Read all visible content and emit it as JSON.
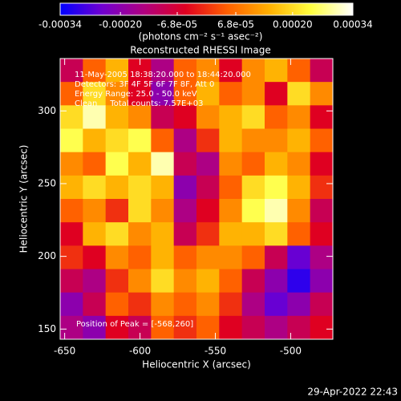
{
  "chart_data": {
    "type": "heatmap",
    "title": "Reconstructed RHESSI Image",
    "xlabel": "Heliocentric X (arcsec)",
    "ylabel": "Heliocentric Y (arcsec)",
    "colorbar_label": "(photons cm⁻² s⁻¹ asec⁻²)",
    "clim": [
      -0.00034,
      0.00034
    ],
    "cticks": [
      -0.00034,
      {
        "value": -0.0002,
        "label": "-0.00020"
      },
      {
        "value": -6.8e-05,
        "label": "-6.8e-05"
      },
      {
        "value": 6.8e-05,
        "label": "6.8e-05"
      },
      {
        "value": 0.0002,
        "label": "0.00020"
      },
      0.00034
    ],
    "colormap": [
      "#0000ff",
      "#7000d0",
      "#b00080",
      "#e00020",
      "#ff6000",
      "#ffb000",
      "#ffff40",
      "#ffffff"
    ],
    "xlim": [
      -653,
      -472
    ],
    "ylim": [
      143,
      336
    ],
    "xticks": [
      -650,
      -600,
      -550,
      -500
    ],
    "yticks": [
      150,
      200,
      250,
      300
    ],
    "annotations": [
      "11-May-2005 18:38:20.000 to 18:44:20.000",
      "Detectors: 3F 4F 5F 6F 7F 8F, Att 0",
      "Energy Range: 25.0 - 50.0 keV",
      "Clean     Total counts: 7.57E+03"
    ],
    "peak_label": "Position of Peak = [-568,260]",
    "footer": "29-Apr-2022 22:43",
    "z": [
      [
        -0.0001,
        5e-05,
        0.00015,
        -5e-05,
        -0.00015,
        5e-05,
        0.0001,
        -5e-05,
        0.0001,
        0.00015,
        5e-05,
        -0.0001
      ],
      [
        5e-05,
        0.0002,
        0.0001,
        -5e-05,
        -0.0002,
        5e-05,
        0.00015,
        5e-05,
        0.0001,
        -5e-05,
        0.0002,
        0.0001
      ],
      [
        0.0002,
        0.0003,
        0.00015,
        0.0001,
        -0.0001,
        -5e-05,
        0.0001,
        0.00015,
        0.0002,
        5e-05,
        0.0001,
        -5e-05
      ],
      [
        0.00025,
        0.00015,
        0.0002,
        0.00025,
        5e-05,
        -0.00015,
        0,
        0.00015,
        0.0001,
        0.0001,
        0.00015,
        5e-05
      ],
      [
        0.0001,
        5e-05,
        0.00025,
        0.00015,
        0.0003,
        -0.0001,
        -0.00015,
        0.0001,
        5e-05,
        0.00015,
        0.0001,
        -5e-05
      ],
      [
        0.00015,
        0.0002,
        0.00015,
        0.0002,
        0.00015,
        -0.0002,
        -0.0001,
        5e-05,
        0.0002,
        0.00025,
        0.00015,
        0
      ],
      [
        5e-05,
        0.0001,
        0,
        0.0002,
        0.0001,
        -0.00015,
        -5e-05,
        0.0001,
        0.00025,
        0.0003,
        0.0001,
        -0.0001
      ],
      [
        -5e-05,
        0.00015,
        0.0002,
        0.0001,
        0.00015,
        -0.0001,
        0,
        0.00015,
        0.00015,
        0.0002,
        5e-05,
        -5e-05
      ],
      [
        0,
        -5e-05,
        0.0001,
        5e-05,
        0.00015,
        5e-05,
        0.0001,
        0.0001,
        5e-05,
        -0.0001,
        -0.00025,
        -0.00015
      ],
      [
        -0.0001,
        -0.00015,
        0,
        0.0001,
        0.0002,
        0.0001,
        0.00015,
        5e-05,
        -0.0001,
        -0.0002,
        -0.0003,
        -0.0002
      ],
      [
        -0.0002,
        -0.0001,
        5e-05,
        0,
        0.0001,
        5e-05,
        0.0001,
        0,
        -0.00015,
        -0.00025,
        -0.0002,
        -0.0001
      ],
      [
        -0.00015,
        -0.0002,
        -5e-05,
        -0.0001,
        5e-05,
        0,
        5e-05,
        -5e-05,
        -0.0001,
        -0.00015,
        -0.0001,
        -5e-05
      ]
    ]
  }
}
